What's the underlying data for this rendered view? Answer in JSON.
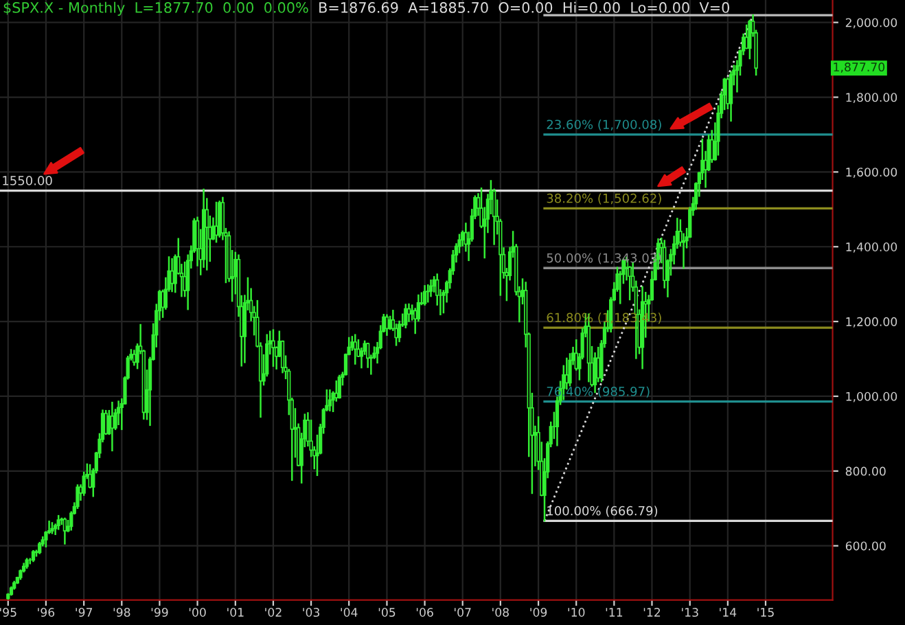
{
  "chart_data": {
    "type": "candlestick",
    "title": "$SPX.X - Monthly  L=1877.70  0.00  0.00%",
    "subtitle": "B=1876.69  A=1885.70  O=0.00  Hi=0.00  Lo=0.00  V=0",
    "xlim": [
      "1994-10-15",
      "2016-10-08"
    ],
    "ylim": [
      455,
      2060
    ],
    "xticks": [
      {
        "value": "1995-01",
        "label": "'95"
      },
      {
        "value": "1996-01",
        "label": "'96"
      },
      {
        "value": "1997-01",
        "label": "'97"
      },
      {
        "value": "1998-01",
        "label": "'98"
      },
      {
        "value": "1999-01",
        "label": "'99"
      },
      {
        "value": "2000-01",
        "label": "'00"
      },
      {
        "value": "2001-01",
        "label": "'01"
      },
      {
        "value": "2002-01",
        "label": "'02"
      },
      {
        "value": "2003-01",
        "label": "'03"
      },
      {
        "value": "2004-01",
        "label": "'04"
      },
      {
        "value": "2005-01",
        "label": "'05"
      },
      {
        "value": "2006-01",
        "label": "'06"
      },
      {
        "value": "2007-01",
        "label": "'07"
      },
      {
        "value": "2008-01",
        "label": "'08"
      },
      {
        "value": "2009-01",
        "label": "'09"
      },
      {
        "value": "2010-01",
        "label": "'10"
      },
      {
        "value": "2011-01",
        "label": "'11"
      },
      {
        "value": "2012-01",
        "label": "'12"
      },
      {
        "value": "2013-01",
        "label": "'13"
      },
      {
        "value": "2014-01",
        "label": "'14"
      },
      {
        "value": "2015-01",
        "label": "'15"
      }
    ],
    "yticks": [
      {
        "value": 600,
        "label": "600.00"
      },
      {
        "value": 800,
        "label": "800.00"
      },
      {
        "value": 1000,
        "label": "1,000.00"
      },
      {
        "value": 1200,
        "label": "1,200.00"
      },
      {
        "value": 1400,
        "label": "1,400.00"
      },
      {
        "value": 1600,
        "label": "1,600.00"
      },
      {
        "value": 1800,
        "label": "1,800.00"
      },
      {
        "value": 2000,
        "label": "2,000.00"
      }
    ],
    "grid": true,
    "color": "#33ee33",
    "x": [
      "1995-01",
      "1995-02",
      "1995-03",
      "1995-04",
      "1995-05",
      "1995-06",
      "1995-07",
      "1995-08",
      "1995-09",
      "1995-10",
      "1995-11",
      "1995-12",
      "1996-01",
      "1996-02",
      "1996-03",
      "1996-04",
      "1996-05",
      "1996-06",
      "1996-07",
      "1996-08",
      "1996-09",
      "1996-10",
      "1996-11",
      "1996-12",
      "1997-01",
      "1997-02",
      "1997-03",
      "1997-04",
      "1997-05",
      "1997-06",
      "1997-07",
      "1997-08",
      "1997-09",
      "1997-10",
      "1997-11",
      "1997-12",
      "1998-01",
      "1998-02",
      "1998-03",
      "1998-04",
      "1998-05",
      "1998-06",
      "1998-07",
      "1998-08",
      "1998-09",
      "1998-10",
      "1998-11",
      "1998-12",
      "1999-01",
      "1999-02",
      "1999-03",
      "1999-04",
      "1999-05",
      "1999-06",
      "1999-07",
      "1999-08",
      "1999-09",
      "1999-10",
      "1999-11",
      "1999-12",
      "2000-01",
      "2000-02",
      "2000-03",
      "2000-04",
      "2000-05",
      "2000-06",
      "2000-07",
      "2000-08",
      "2000-09",
      "2000-10",
      "2000-11",
      "2000-12",
      "2001-01",
      "2001-02",
      "2001-03",
      "2001-04",
      "2001-05",
      "2001-06",
      "2001-07",
      "2001-08",
      "2001-09",
      "2001-10",
      "2001-11",
      "2001-12",
      "2002-01",
      "2002-02",
      "2002-03",
      "2002-04",
      "2002-05",
      "2002-06",
      "2002-07",
      "2002-08",
      "2002-09",
      "2002-10",
      "2002-11",
      "2002-12",
      "2003-01",
      "2003-02",
      "2003-03",
      "2003-04",
      "2003-05",
      "2003-06",
      "2003-07",
      "2003-08",
      "2003-09",
      "2003-10",
      "2003-11",
      "2003-12",
      "2004-01",
      "2004-02",
      "2004-03",
      "2004-04",
      "2004-05",
      "2004-06",
      "2004-07",
      "2004-08",
      "2004-09",
      "2004-10",
      "2004-11",
      "2004-12",
      "2005-01",
      "2005-02",
      "2005-03",
      "2005-04",
      "2005-05",
      "2005-06",
      "2005-07",
      "2005-08",
      "2005-09",
      "2005-10",
      "2005-11",
      "2005-12",
      "2006-01",
      "2006-02",
      "2006-03",
      "2006-04",
      "2006-05",
      "2006-06",
      "2006-07",
      "2006-08",
      "2006-09",
      "2006-10",
      "2006-11",
      "2006-12",
      "2007-01",
      "2007-02",
      "2007-03",
      "2007-04",
      "2007-05",
      "2007-06",
      "2007-07",
      "2007-08",
      "2007-09",
      "2007-10",
      "2007-11",
      "2007-12",
      "2008-01",
      "2008-02",
      "2008-03",
      "2008-04",
      "2008-05",
      "2008-06",
      "2008-07",
      "2008-08",
      "2008-09",
      "2008-10",
      "2008-11",
      "2008-12",
      "2009-01",
      "2009-02",
      "2009-03",
      "2009-04",
      "2009-05",
      "2009-06",
      "2009-07",
      "2009-08",
      "2009-09",
      "2009-10",
      "2009-11",
      "2009-12",
      "2010-01",
      "2010-02",
      "2010-03",
      "2010-04",
      "2010-05",
      "2010-06",
      "2010-07",
      "2010-08",
      "2010-09",
      "2010-10",
      "2010-11",
      "2010-12",
      "2011-01",
      "2011-02",
      "2011-03",
      "2011-04",
      "2011-05",
      "2011-06",
      "2011-07",
      "2011-08",
      "2011-09",
      "2011-10",
      "2011-11",
      "2011-12",
      "2012-01",
      "2012-02",
      "2012-03",
      "2012-04",
      "2012-05",
      "2012-06",
      "2012-07",
      "2012-08",
      "2012-09",
      "2012-10",
      "2012-11",
      "2012-12",
      "2013-01",
      "2013-02",
      "2013-03",
      "2013-04",
      "2013-05",
      "2013-06",
      "2013-07",
      "2013-08",
      "2013-09",
      "2013-10",
      "2013-11",
      "2013-12",
      "2014-01",
      "2014-02",
      "2014-03",
      "2014-04",
      "2014-05",
      "2014-06",
      "2014-07",
      "2014-08",
      "2014-09",
      "2014-10"
    ],
    "ohlc": [
      [
        459,
        471,
        458,
        470
      ],
      [
        470,
        489,
        469,
        487
      ],
      [
        487,
        504,
        485,
        501
      ],
      [
        501,
        515,
        500,
        515
      ],
      [
        515,
        534,
        511,
        533
      ],
      [
        533,
        552,
        531,
        545
      ],
      [
        545,
        565,
        541,
        562
      ],
      [
        562,
        565,
        553,
        562
      ],
      [
        562,
        586,
        559,
        584
      ],
      [
        584,
        587,
        573,
        582
      ],
      [
        582,
        608,
        580,
        605
      ],
      [
        605,
        623,
        601,
        616
      ],
      [
        616,
        637,
        598,
        636
      ],
      [
        636,
        665,
        634,
        640
      ],
      [
        640,
        661,
        634,
        646
      ],
      [
        646,
        657,
        631,
        654
      ],
      [
        654,
        680,
        645,
        669
      ],
      [
        669,
        673,
        658,
        671
      ],
      [
        671,
        673,
        606,
        640
      ],
      [
        640,
        667,
        639,
        652
      ],
      [
        652,
        690,
        643,
        687
      ],
      [
        687,
        714,
        686,
        705
      ],
      [
        705,
        762,
        701,
        757
      ],
      [
        757,
        762,
        723,
        741
      ],
      [
        741,
        796,
        736,
        786
      ],
      [
        786,
        818,
        781,
        791
      ],
      [
        791,
        816,
        756,
        757
      ],
      [
        757,
        805,
        733,
        801
      ],
      [
        801,
        849,
        796,
        848
      ],
      [
        848,
        899,
        837,
        885
      ],
      [
        885,
        962,
        879,
        954
      ],
      [
        954,
        961,
        899,
        900
      ],
      [
        900,
        961,
        899,
        947
      ],
      [
        947,
        983,
        855,
        915
      ],
      [
        915,
        964,
        912,
        955
      ],
      [
        955,
        986,
        925,
        970
      ],
      [
        970,
        992,
        912,
        980
      ],
      [
        980,
        1051,
        980,
        1049
      ],
      [
        1049,
        1106,
        1047,
        1102
      ],
      [
        1102,
        1124,
        1098,
        1112
      ],
      [
        1112,
        1122,
        1084,
        1091
      ],
      [
        1091,
        1139,
        1075,
        1134
      ],
      [
        1134,
        1191,
        1115,
        1121
      ],
      [
        1121,
        1122,
        940,
        957
      ],
      [
        957,
        1069,
        939,
        1017
      ],
      [
        1017,
        1103,
        923,
        1099
      ],
      [
        1099,
        1193,
        1098,
        1164
      ],
      [
        1164,
        1245,
        1133,
        1229
      ],
      [
        1229,
        1282,
        1205,
        1280
      ],
      [
        1280,
        1283,
        1212,
        1238
      ],
      [
        1238,
        1316,
        1234,
        1286
      ],
      [
        1286,
        1372,
        1282,
        1335
      ],
      [
        1335,
        1367,
        1281,
        1302
      ],
      [
        1302,
        1377,
        1279,
        1373
      ],
      [
        1373,
        1421,
        1328,
        1329
      ],
      [
        1329,
        1352,
        1268,
        1320
      ],
      [
        1320,
        1358,
        1268,
        1283
      ],
      [
        1283,
        1377,
        1233,
        1363
      ],
      [
        1363,
        1401,
        1344,
        1389
      ],
      [
        1389,
        1474,
        1386,
        1469
      ],
      [
        1469,
        1478,
        1350,
        1395
      ],
      [
        1395,
        1445,
        1326,
        1366
      ],
      [
        1366,
        1553,
        1346,
        1499
      ],
      [
        1499,
        1528,
        1339,
        1452
      ],
      [
        1452,
        1481,
        1362,
        1421
      ],
      [
        1421,
        1476,
        1420,
        1455
      ],
      [
        1455,
        1518,
        1413,
        1431
      ],
      [
        1431,
        1521,
        1427,
        1518
      ],
      [
        1518,
        1531,
        1420,
        1437
      ],
      [
        1437,
        1448,
        1305,
        1429
      ],
      [
        1429,
        1439,
        1308,
        1315
      ],
      [
        1315,
        1389,
        1255,
        1320
      ],
      [
        1320,
        1384,
        1275,
        1366
      ],
      [
        1366,
        1377,
        1215,
        1240
      ],
      [
        1240,
        1268,
        1082,
        1160
      ],
      [
        1160,
        1269,
        1091,
        1250
      ],
      [
        1250,
        1316,
        1232,
        1256
      ],
      [
        1256,
        1287,
        1203,
        1224
      ],
      [
        1224,
        1239,
        1165,
        1211
      ],
      [
        1211,
        1255,
        1133,
        1134
      ],
      [
        1134,
        1142,
        945,
        1041
      ],
      [
        1041,
        1110,
        1031,
        1060
      ],
      [
        1060,
        1164,
        1055,
        1140
      ],
      [
        1140,
        1173,
        1114,
        1148
      ],
      [
        1148,
        1177,
        1081,
        1130
      ],
      [
        1130,
        1131,
        1074,
        1107
      ],
      [
        1107,
        1173,
        1107,
        1147
      ],
      [
        1147,
        1147,
        1064,
        1077
      ],
      [
        1077,
        1107,
        1048,
        1067
      ],
      [
        1067,
        1071,
        952,
        990
      ],
      [
        990,
        994,
        776,
        912
      ],
      [
        912,
        966,
        838,
        916
      ],
      [
        916,
        925,
        815,
        815
      ],
      [
        815,
        900,
        769,
        886
      ],
      [
        886,
        951,
        866,
        936
      ],
      [
        936,
        955,
        868,
        880
      ],
      [
        880,
        935,
        840,
        856
      ],
      [
        856,
        864,
        807,
        841
      ],
      [
        841,
        895,
        789,
        848
      ],
      [
        848,
        924,
        847,
        917
      ],
      [
        917,
        966,
        902,
        964
      ],
      [
        964,
        1016,
        962,
        975
      ],
      [
        975,
        1016,
        962,
        990
      ],
      [
        990,
        1011,
        960,
        1008
      ],
      [
        1008,
        1040,
        988,
        996
      ],
      [
        996,
        1055,
        996,
        1051
      ],
      [
        1051,
        1063,
        1031,
        1058
      ],
      [
        1058,
        1112,
        1058,
        1112
      ],
      [
        1112,
        1156,
        1112,
        1131
      ],
      [
        1131,
        1159,
        1124,
        1145
      ],
      [
        1145,
        1164,
        1087,
        1126
      ],
      [
        1126,
        1150,
        1107,
        1107
      ],
      [
        1107,
        1128,
        1077,
        1121
      ],
      [
        1121,
        1147,
        1113,
        1141
      ],
      [
        1141,
        1141,
        1078,
        1102
      ],
      [
        1102,
        1109,
        1060,
        1104
      ],
      [
        1104,
        1131,
        1102,
        1115
      ],
      [
        1115,
        1143,
        1090,
        1130
      ],
      [
        1130,
        1188,
        1128,
        1174
      ],
      [
        1174,
        1218,
        1173,
        1212
      ],
      [
        1212,
        1217,
        1164,
        1181
      ],
      [
        1181,
        1213,
        1180,
        1204
      ],
      [
        1204,
        1229,
        1177,
        1181
      ],
      [
        1181,
        1192,
        1137,
        1157
      ],
      [
        1157,
        1200,
        1147,
        1192
      ],
      [
        1192,
        1219,
        1188,
        1191
      ],
      [
        1191,
        1245,
        1184,
        1234
      ],
      [
        1234,
        1246,
        1201,
        1220
      ],
      [
        1220,
        1243,
        1205,
        1229
      ],
      [
        1229,
        1234,
        1169,
        1207
      ],
      [
        1207,
        1270,
        1202,
        1250
      ],
      [
        1250,
        1276,
        1246,
        1248
      ],
      [
        1248,
        1295,
        1245,
        1280
      ],
      [
        1280,
        1297,
        1253,
        1281
      ],
      [
        1281,
        1310,
        1268,
        1295
      ],
      [
        1295,
        1319,
        1280,
        1311
      ],
      [
        1311,
        1326,
        1245,
        1270
      ],
      [
        1270,
        1284,
        1219,
        1270
      ],
      [
        1270,
        1282,
        1224,
        1277
      ],
      [
        1277,
        1307,
        1253,
        1304
      ],
      [
        1304,
        1340,
        1290,
        1336
      ],
      [
        1336,
        1389,
        1327,
        1378
      ],
      [
        1378,
        1407,
        1360,
        1401
      ],
      [
        1401,
        1432,
        1385,
        1418
      ],
      [
        1418,
        1441,
        1403,
        1438
      ],
      [
        1438,
        1462,
        1389,
        1407
      ],
      [
        1407,
        1438,
        1364,
        1421
      ],
      [
        1421,
        1499,
        1416,
        1482
      ],
      [
        1482,
        1535,
        1476,
        1531
      ],
      [
        1531,
        1541,
        1485,
        1503
      ],
      [
        1503,
        1556,
        1452,
        1455
      ],
      [
        1455,
        1504,
        1371,
        1474
      ],
      [
        1474,
        1539,
        1439,
        1527
      ],
      [
        1527,
        1576,
        1489,
        1549
      ],
      [
        1549,
        1553,
        1407,
        1481
      ],
      [
        1481,
        1524,
        1435,
        1468
      ],
      [
        1468,
        1472,
        1271,
        1379
      ],
      [
        1379,
        1396,
        1317,
        1331
      ],
      [
        1331,
        1341,
        1257,
        1323
      ],
      [
        1323,
        1397,
        1312,
        1386
      ],
      [
        1386,
        1440,
        1373,
        1400
      ],
      [
        1400,
        1405,
        1272,
        1280
      ],
      [
        1280,
        1292,
        1200,
        1267
      ],
      [
        1267,
        1313,
        1248,
        1283
      ],
      [
        1283,
        1304,
        1133,
        1166
      ],
      [
        1166,
        1168,
        840,
        969
      ],
      [
        969,
        1007,
        741,
        896
      ],
      [
        896,
        919,
        815,
        903
      ],
      [
        903,
        944,
        805,
        826
      ],
      [
        826,
        876,
        735,
        735
      ],
      [
        735,
        832,
        667,
        798
      ],
      [
        798,
        877,
        783,
        873
      ],
      [
        873,
        930,
        866,
        919
      ],
      [
        919,
        956,
        888,
        919
      ],
      [
        919,
        997,
        869,
        988
      ],
      [
        988,
        1039,
        979,
        1021
      ],
      [
        1021,
        1081,
        992,
        1057
      ],
      [
        1057,
        1101,
        1020,
        1036
      ],
      [
        1036,
        1113,
        1029,
        1096
      ],
      [
        1096,
        1130,
        1086,
        1115
      ],
      [
        1115,
        1150,
        1071,
        1074
      ],
      [
        1074,
        1113,
        1045,
        1105
      ],
      [
        1105,
        1180,
        1101,
        1169
      ],
      [
        1169,
        1220,
        1160,
        1187
      ],
      [
        1187,
        1219,
        1040,
        1089
      ],
      [
        1089,
        1132,
        1028,
        1031
      ],
      [
        1031,
        1115,
        1011,
        1102
      ],
      [
        1102,
        1130,
        1040,
        1049
      ],
      [
        1049,
        1148,
        1040,
        1141
      ],
      [
        1141,
        1196,
        1132,
        1183
      ],
      [
        1183,
        1228,
        1174,
        1181
      ],
      [
        1181,
        1263,
        1173,
        1258
      ],
      [
        1258,
        1303,
        1257,
        1286
      ],
      [
        1286,
        1344,
        1282,
        1327
      ],
      [
        1327,
        1333,
        1249,
        1326
      ],
      [
        1326,
        1366,
        1303,
        1364
      ],
      [
        1364,
        1371,
        1312,
        1345
      ],
      [
        1345,
        1346,
        1259,
        1321
      ],
      [
        1321,
        1357,
        1282,
        1292
      ],
      [
        1292,
        1307,
        1102,
        1219
      ],
      [
        1219,
        1230,
        1115,
        1131
      ],
      [
        1131,
        1292,
        1075,
        1253
      ],
      [
        1253,
        1277,
        1159,
        1247
      ],
      [
        1247,
        1269,
        1202,
        1258
      ],
      [
        1258,
        1333,
        1258,
        1312
      ],
      [
        1312,
        1378,
        1312,
        1366
      ],
      [
        1366,
        1420,
        1341,
        1409
      ],
      [
        1409,
        1422,
        1358,
        1398
      ],
      [
        1398,
        1416,
        1291,
        1310
      ],
      [
        1310,
        1364,
        1267,
        1362
      ],
      [
        1362,
        1392,
        1325,
        1379
      ],
      [
        1379,
        1427,
        1355,
        1407
      ],
      [
        1407,
        1475,
        1397,
        1441
      ],
      [
        1441,
        1471,
        1403,
        1412
      ],
      [
        1412,
        1434,
        1343,
        1416
      ],
      [
        1416,
        1448,
        1398,
        1426
      ],
      [
        1426,
        1504,
        1426,
        1498
      ],
      [
        1498,
        1531,
        1485,
        1515
      ],
      [
        1515,
        1570,
        1501,
        1569
      ],
      [
        1569,
        1598,
        1536,
        1598
      ],
      [
        1598,
        1687,
        1581,
        1631
      ],
      [
        1631,
        1654,
        1560,
        1606
      ],
      [
        1606,
        1698,
        1605,
        1686
      ],
      [
        1686,
        1710,
        1627,
        1633
      ],
      [
        1633,
        1730,
        1633,
        1682
      ],
      [
        1682,
        1776,
        1646,
        1757
      ],
      [
        1757,
        1814,
        1746,
        1806
      ],
      [
        1806,
        1849,
        1768,
        1848
      ],
      [
        1848,
        1851,
        1770,
        1783
      ],
      [
        1783,
        1867,
        1737,
        1860
      ],
      [
        1860,
        1884,
        1834,
        1872
      ],
      [
        1872,
        1897,
        1815,
        1884
      ],
      [
        1884,
        1925,
        1860,
        1924
      ],
      [
        1924,
        1968,
        1915,
        1960
      ],
      [
        1960,
        1992,
        1931,
        1931
      ],
      [
        1931,
        2005,
        1904,
        2003
      ],
      [
        2003,
        2019,
        1964,
        1972
      ],
      [
        1972,
        1978,
        1860,
        1878
      ]
    ],
    "series": [
      {
        "type": "line",
        "color": "#d8d8d8",
        "line_style": "dotted",
        "x": [
          "2009-03",
          "2014-09"
        ],
        "values": [
          667,
          2019
        ]
      }
    ],
    "ref_lines": [
      {
        "axis": "y",
        "value": 1550,
        "label": "1550.00",
        "color": "#d8d8d8"
      },
      {
        "axis": "y",
        "value": 2019.26,
        "label": null,
        "color": "#bdbdbd"
      },
      {
        "axis": "y",
        "value": 1700.08,
        "label": "23.60% (1,700.08)",
        "color": "#1f8f8f"
      },
      {
        "axis": "y",
        "value": 1502.62,
        "label": "38.20% (1,502.62)",
        "color": "#8c8c1e"
      },
      {
        "axis": "y",
        "value": 1343.03,
        "label": "50.00% (1,343.03)",
        "color": "#8c8c8c"
      },
      {
        "axis": "y",
        "value": 1183.43,
        "label": "61.80% (1,183.43)",
        "color": "#8c8c1e"
      },
      {
        "axis": "y",
        "value": 985.97,
        "label": "76.40% (985.97)",
        "color": "#1f8f8f"
      },
      {
        "axis": "y",
        "value": 666.79,
        "label": "100.00% (666.79)",
        "color": "#d8d8d8"
      }
    ],
    "annotations": [
      "1,877.70"
    ]
  }
}
